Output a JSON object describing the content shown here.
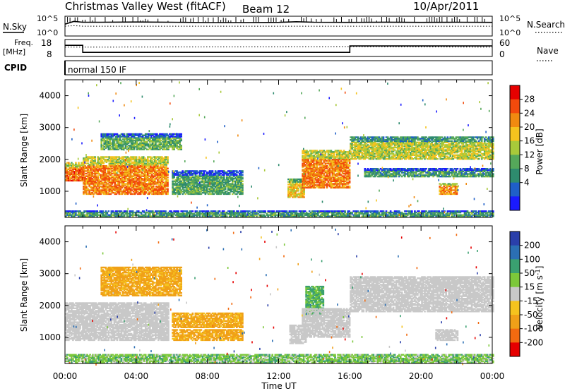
{
  "header": {
    "title": "Christmas Valley West (fitACF)",
    "beam": "Beam 12",
    "date": "10/Apr/2011"
  },
  "strips": {
    "nsky_label": "N.Sky",
    "nsearch_label": "N.Search",
    "noise_top": "10^5",
    "noise_bottom": "10^0",
    "freq_label": "Freq.",
    "freq_unit": "[MHz]",
    "freq_ticks": [
      "18",
      "8"
    ],
    "nave_label": "Nave",
    "nave_ticks": [
      "60",
      "0"
    ],
    "cpid_label": "CPID",
    "cpid_value": "normal 150 IF"
  },
  "chart_data": [
    {
      "type": "line",
      "title": "",
      "xlabel": "",
      "ylabel": "N.Sky",
      "y2label": "N.Search",
      "scale": "log",
      "ylim": [
        1,
        100000
      ],
      "series": [
        {
          "name": "N.Sky",
          "x": [
            0,
            0.5,
            1,
            2,
            4,
            6,
            8,
            10,
            12,
            13,
            14,
            16,
            18,
            20,
            22,
            24
          ],
          "values": [
            1000,
            5000,
            3000,
            3000,
            3500,
            3000,
            2500,
            2500,
            2800,
            4000,
            3000,
            2800,
            3200,
            2800,
            3000,
            2800
          ]
        },
        {
          "name": "N.Search",
          "x": [
            0,
            0.5,
            1,
            4,
            8,
            12,
            16,
            20,
            24
          ],
          "values": [
            300,
            400,
            300,
            300,
            300,
            300,
            300,
            300,
            300
          ]
        }
      ]
    },
    {
      "type": "line",
      "title": "",
      "xlabel": "",
      "ylabel": "Freq. [MHz]",
      "y2label": "Nave",
      "ylim": [
        8,
        18
      ],
      "y2lim": [
        0,
        60
      ],
      "series": [
        {
          "name": "Freq.",
          "x": [
            0,
            1,
            1,
            16,
            16,
            24
          ],
          "values": [
            14.6,
            14.6,
            10.4,
            10.4,
            14.2,
            14.2
          ]
        },
        {
          "name": "Nave",
          "x": [
            0,
            1,
            16,
            24
          ],
          "values": [
            33,
            33,
            35,
            33
          ]
        }
      ]
    },
    {
      "type": "heatmap",
      "title": "",
      "xlabel": "",
      "ylabel": "Slant Range [km]",
      "xlim": [
        "00:00",
        "24:00"
      ],
      "ylim": [
        180,
        4500
      ],
      "x_ticks": [
        "00:00",
        "04:00",
        "08:00",
        "12:00",
        "16:00",
        "20:00",
        "00:00"
      ],
      "y_ticks": [
        "1000",
        "2000",
        "3000",
        "4000"
      ],
      "colorbar": {
        "label": "Power [dB]",
        "ticks": [
          "28",
          "24",
          "20",
          "16",
          "12",
          "8",
          "4"
        ]
      },
      "regions": [
        {
          "t0": 0.0,
          "t1": 1.0,
          "r0": 1320,
          "r1": 1900,
          "value": 28
        },
        {
          "t0": 1.0,
          "t1": 5.8,
          "r0": 900,
          "r1": 2100,
          "value": 27
        },
        {
          "t0": 2.0,
          "t1": 6.5,
          "r0": 2300,
          "r1": 2800,
          "value": 14
        },
        {
          "t0": 6.0,
          "t1": 10.0,
          "r0": 900,
          "r1": 1650,
          "value": 13
        },
        {
          "t0": 12.5,
          "t1": 13.4,
          "r0": 800,
          "r1": 1400,
          "value": 22
        },
        {
          "t0": 13.3,
          "t1": 16.0,
          "r0": 1100,
          "r1": 2300,
          "value": 27
        },
        {
          "t0": 16.0,
          "t1": 24.0,
          "r0": 2000,
          "r1": 2700,
          "value": 19
        },
        {
          "t0": 16.8,
          "t1": 24.0,
          "r0": 1450,
          "r1": 1700,
          "value": 12
        },
        {
          "t0": 21.0,
          "t1": 22.0,
          "r0": 900,
          "r1": 1250,
          "value": 26
        },
        {
          "t0": 0.0,
          "t1": 24.0,
          "r0": 200,
          "r1": 400,
          "value": 12
        }
      ]
    },
    {
      "type": "heatmap",
      "title": "",
      "xlabel": "Time UT",
      "ylabel": "Slant Range [km]",
      "xlim": [
        "00:00",
        "24:00"
      ],
      "ylim": [
        180,
        4500
      ],
      "x_ticks": [
        "00:00",
        "04:00",
        "08:00",
        "12:00",
        "16:00",
        "20:00",
        "00:00"
      ],
      "y_ticks": [
        "1000",
        "2000",
        "3000",
        "4000"
      ],
      "colorbar": {
        "label": "Velocity [m s^-1]",
        "ticks": [
          "200",
          "100",
          "50",
          "15",
          "-15",
          "-50",
          "-100",
          "-200"
        ]
      },
      "regions": [
        {
          "t0": 0.0,
          "t1": 5.8,
          "r0": 900,
          "r1": 2100,
          "value": 0
        },
        {
          "t0": 2.0,
          "t1": 6.5,
          "r0": 2300,
          "r1": 3200,
          "value": -40
        },
        {
          "t0": 6.0,
          "t1": 10.0,
          "r0": 1300,
          "r1": 1750,
          "value": -40
        },
        {
          "t0": 6.0,
          "t1": 10.0,
          "r0": 900,
          "r1": 1250,
          "value": -40
        },
        {
          "t0": 12.6,
          "t1": 13.5,
          "r0": 800,
          "r1": 1400,
          "value": 0
        },
        {
          "t0": 13.5,
          "t1": 14.5,
          "r0": 1700,
          "r1": 2600,
          "value": 35
        },
        {
          "t0": 13.3,
          "t1": 16.0,
          "r0": 1000,
          "r1": 1900,
          "value": 0
        },
        {
          "t0": 16.0,
          "t1": 24.0,
          "r0": 1800,
          "r1": 2900,
          "value": 0
        },
        {
          "t0": 20.8,
          "t1": 22.0,
          "r0": 900,
          "r1": 1250,
          "value": 0
        },
        {
          "t0": 0.0,
          "t1": 24.0,
          "r0": 200,
          "r1": 450,
          "value": 25
        }
      ]
    }
  ]
}
